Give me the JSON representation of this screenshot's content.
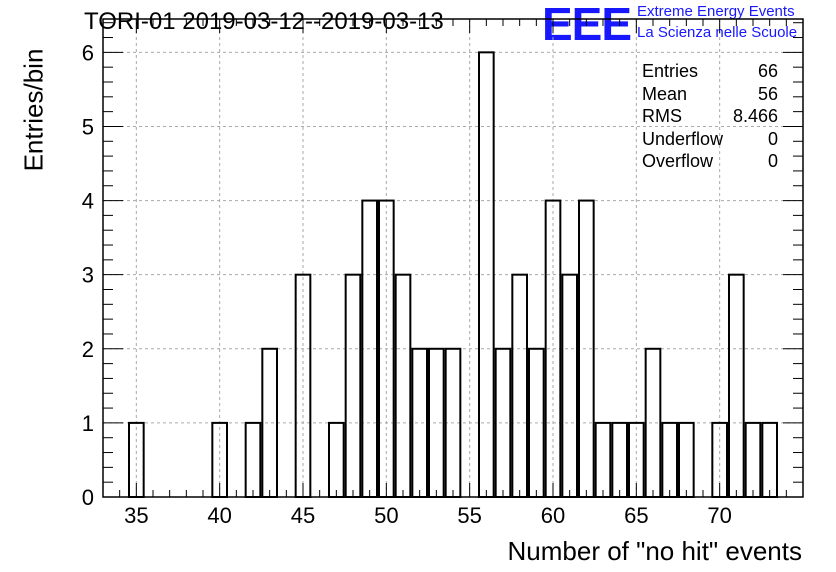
{
  "title": "TORI-01 2019-03-12--2019-03-13",
  "logo": {
    "mark": "EEE",
    "line1": "Extreme Energy Events",
    "line2": "La Scienza nelle Scuole",
    "color": "#1818ff"
  },
  "stats": [
    {
      "label": "Entries",
      "value": "66"
    },
    {
      "label": "Mean",
      "value": "56"
    },
    {
      "label": "RMS",
      "value": "8.466"
    },
    {
      "label": "Underflow",
      "value": "0"
    },
    {
      "label": "Overflow",
      "value": "0"
    }
  ],
  "chart_data": {
    "type": "bar",
    "xlabel": "Number of \"no hit\" events",
    "ylabel": "Entries/bin",
    "xlim": [
      33,
      75
    ],
    "ylim": [
      0,
      6.45
    ],
    "xticks": [
      35,
      40,
      45,
      50,
      55,
      60,
      65,
      70
    ],
    "yticks": [
      0,
      1,
      2,
      3,
      4,
      5,
      6
    ],
    "grid": true,
    "bins": [
      {
        "x": 35,
        "count": 1
      },
      {
        "x": 40,
        "count": 1
      },
      {
        "x": 42,
        "count": 1
      },
      {
        "x": 43,
        "count": 2
      },
      {
        "x": 45,
        "count": 3
      },
      {
        "x": 47,
        "count": 1
      },
      {
        "x": 48,
        "count": 3
      },
      {
        "x": 49,
        "count": 4
      },
      {
        "x": 50,
        "count": 4
      },
      {
        "x": 51,
        "count": 3
      },
      {
        "x": 52,
        "count": 2
      },
      {
        "x": 53,
        "count": 2
      },
      {
        "x": 54,
        "count": 2
      },
      {
        "x": 56,
        "count": 6
      },
      {
        "x": 57,
        "count": 2
      },
      {
        "x": 58,
        "count": 3
      },
      {
        "x": 59,
        "count": 2
      },
      {
        "x": 60,
        "count": 4
      },
      {
        "x": 61,
        "count": 3
      },
      {
        "x": 62,
        "count": 4
      },
      {
        "x": 63,
        "count": 1
      },
      {
        "x": 64,
        "count": 1
      },
      {
        "x": 65,
        "count": 1
      },
      {
        "x": 66,
        "count": 2
      },
      {
        "x": 67,
        "count": 1
      },
      {
        "x": 68,
        "count": 1
      },
      {
        "x": 70,
        "count": 1
      },
      {
        "x": 71,
        "count": 3
      },
      {
        "x": 72,
        "count": 1
      },
      {
        "x": 73,
        "count": 1
      }
    ]
  }
}
